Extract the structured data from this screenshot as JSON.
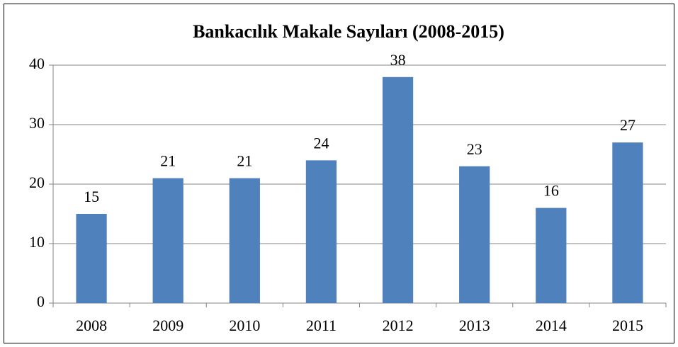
{
  "chart_data": {
    "type": "bar",
    "title": "Bankacılık Makale Sayıları (2008-2015)",
    "categories": [
      "2008",
      "2009",
      "2010",
      "2011",
      "2012",
      "2013",
      "2014",
      "2015"
    ],
    "values": [
      15,
      21,
      21,
      24,
      38,
      23,
      16,
      27
    ],
    "color": "#4f81bd",
    "ylim": [
      0,
      40
    ],
    "yticks": [
      0,
      10,
      20,
      30,
      40
    ],
    "grid": true
  }
}
